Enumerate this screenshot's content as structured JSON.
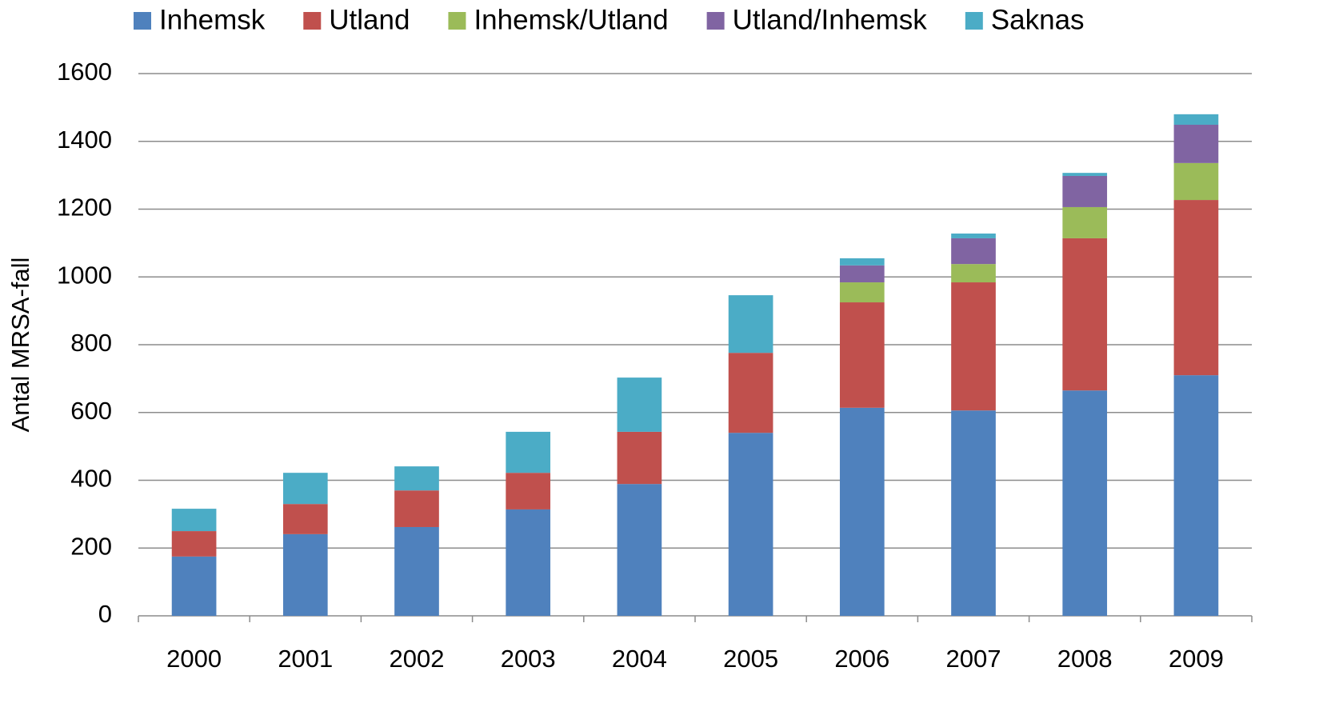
{
  "chart_data": {
    "type": "stacked_bar",
    "y_label": "Antal MRSA-fall",
    "categories": [
      "2000",
      "2001",
      "2002",
      "2003",
      "2004",
      "2005",
      "2006",
      "2007",
      "2008",
      "2009"
    ],
    "series": [
      {
        "name": "Inhemsk",
        "color": "#4f81bd",
        "values": [
          175,
          241,
          262,
          314,
          389,
          540,
          614,
          606,
          665,
          710
        ]
      },
      {
        "name": "Utland",
        "color": "#c0504d",
        "values": [
          75,
          89,
          108,
          108,
          154,
          236,
          311,
          378,
          449,
          517
        ]
      },
      {
        "name": "Inhemsk/Utland",
        "color": "#9bbb59",
        "values": [
          0,
          0,
          0,
          0,
          0,
          0,
          59,
          54,
          92,
          109
        ]
      },
      {
        "name": "Utland/Inhemsk",
        "color": "#8064a2",
        "values": [
          0,
          0,
          0,
          0,
          0,
          0,
          50,
          76,
          92,
          113
        ]
      },
      {
        "name": "Saknas",
        "color": "#4bacc6",
        "values": [
          66,
          92,
          71,
          121,
          160,
          170,
          21,
          14,
          9,
          31
        ]
      }
    ],
    "ylim": [
      0,
      1600
    ],
    "yticks": [
      0,
      200,
      400,
      600,
      800,
      1000,
      1200,
      1400,
      1600
    ],
    "grid": true
  }
}
